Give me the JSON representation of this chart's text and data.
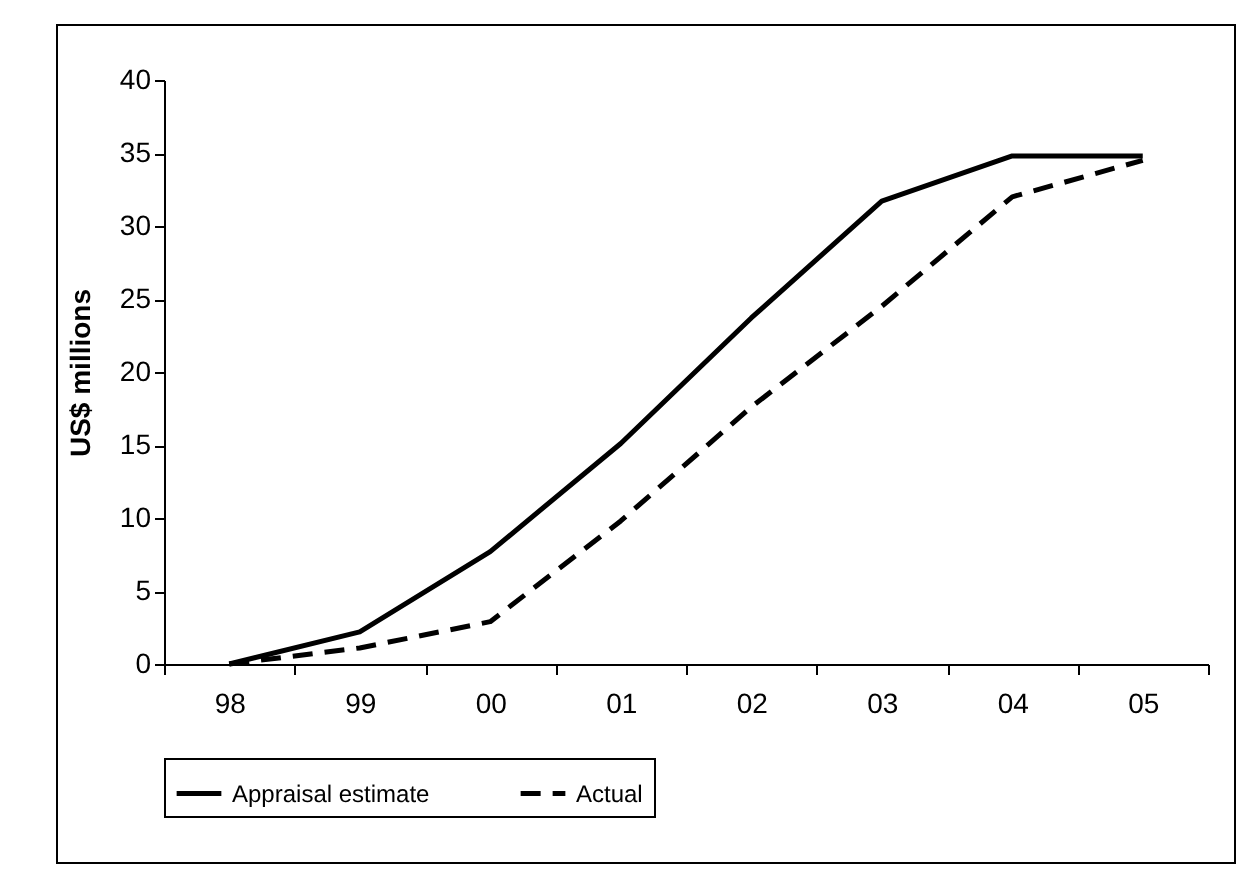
{
  "chart_data": {
    "type": "line",
    "ylabel": "US$ millions",
    "categories": [
      "98",
      "99",
      "00",
      "01",
      "02",
      "03",
      "04",
      "05"
    ],
    "series": [
      {
        "name": "Appraisal estimate",
        "color": "#000000",
        "line_style": "solid",
        "values": [
          0,
          2.2,
          7.7,
          15.1,
          23.7,
          31.7,
          34.8,
          34.8
        ]
      },
      {
        "name": "Actual",
        "color": "#000000",
        "line_style": "dashed",
        "values": [
          0,
          1.1,
          2.9,
          9.8,
          17.6,
          24.5,
          32,
          34.5
        ]
      }
    ],
    "ylim": [
      0,
      40
    ],
    "yticks": [
      0,
      5,
      10,
      15,
      20,
      25,
      30,
      35,
      40
    ],
    "grid": false,
    "legend": "bottom",
    "marker": "none"
  }
}
